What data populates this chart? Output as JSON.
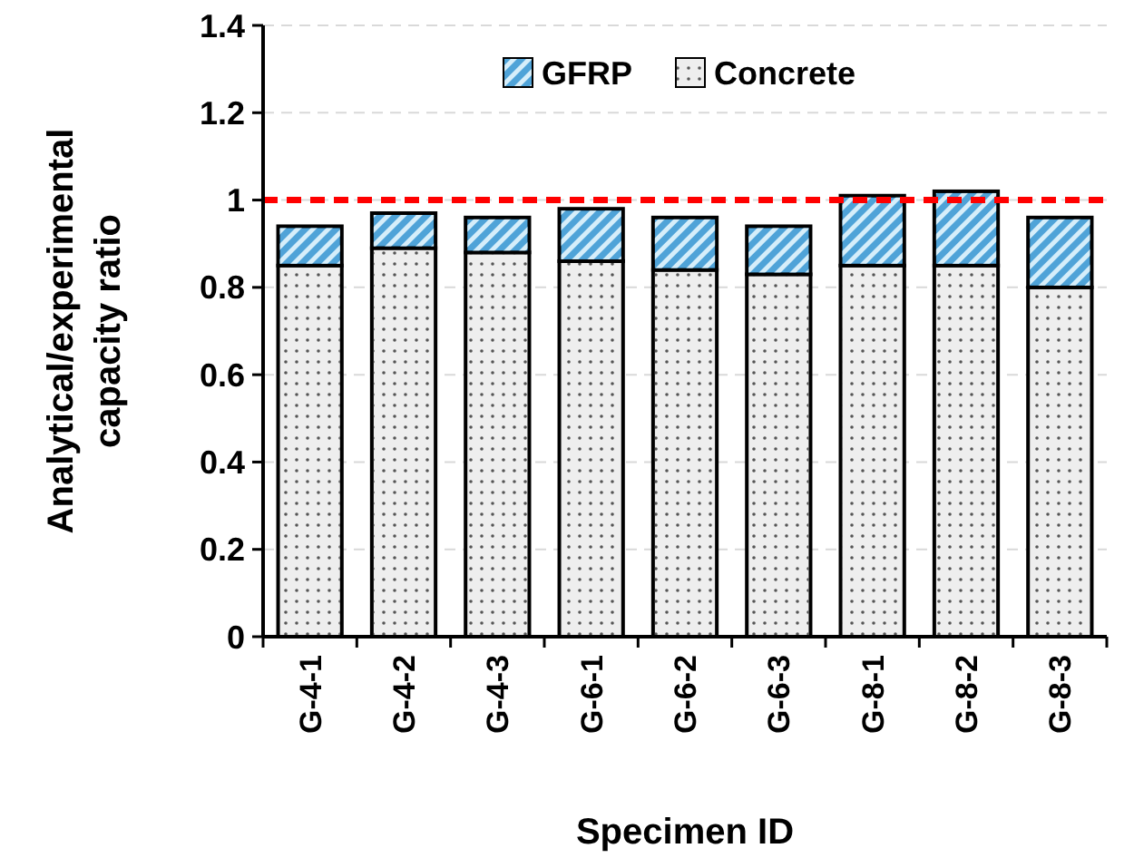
{
  "chart_data": {
    "type": "bar",
    "xlabel": "Specimen ID",
    "ylabel": "Analytical/experimental capacity ratio",
    "categories": [
      "G-4-1",
      "G-4-2",
      "G-4-3",
      "G-6-1",
      "G-6-2",
      "G-6-3",
      "G-8-1",
      "G-8-2",
      "G-8-3"
    ],
    "stacked": true,
    "series": [
      {
        "name": "Concrete",
        "color": "#eeeeee",
        "values": [
          0.85,
          0.89,
          0.88,
          0.86,
          0.84,
          0.83,
          0.85,
          0.85,
          0.8
        ]
      },
      {
        "name": "GFRP",
        "color": "#4fa3d8",
        "values": [
          0.09,
          0.08,
          0.08,
          0.12,
          0.12,
          0.11,
          0.16,
          0.17,
          0.16
        ]
      }
    ],
    "ylim": [
      0,
      1.4
    ],
    "yticks": [
      0,
      0.2,
      0.4,
      0.6,
      0.8,
      1,
      1.2,
      1.4
    ],
    "grid": "y",
    "legend": "top",
    "ref_lines": [
      {
        "axis": "y",
        "value": 1,
        "color": "#ff0000",
        "line_style": "dashed"
      }
    ]
  }
}
